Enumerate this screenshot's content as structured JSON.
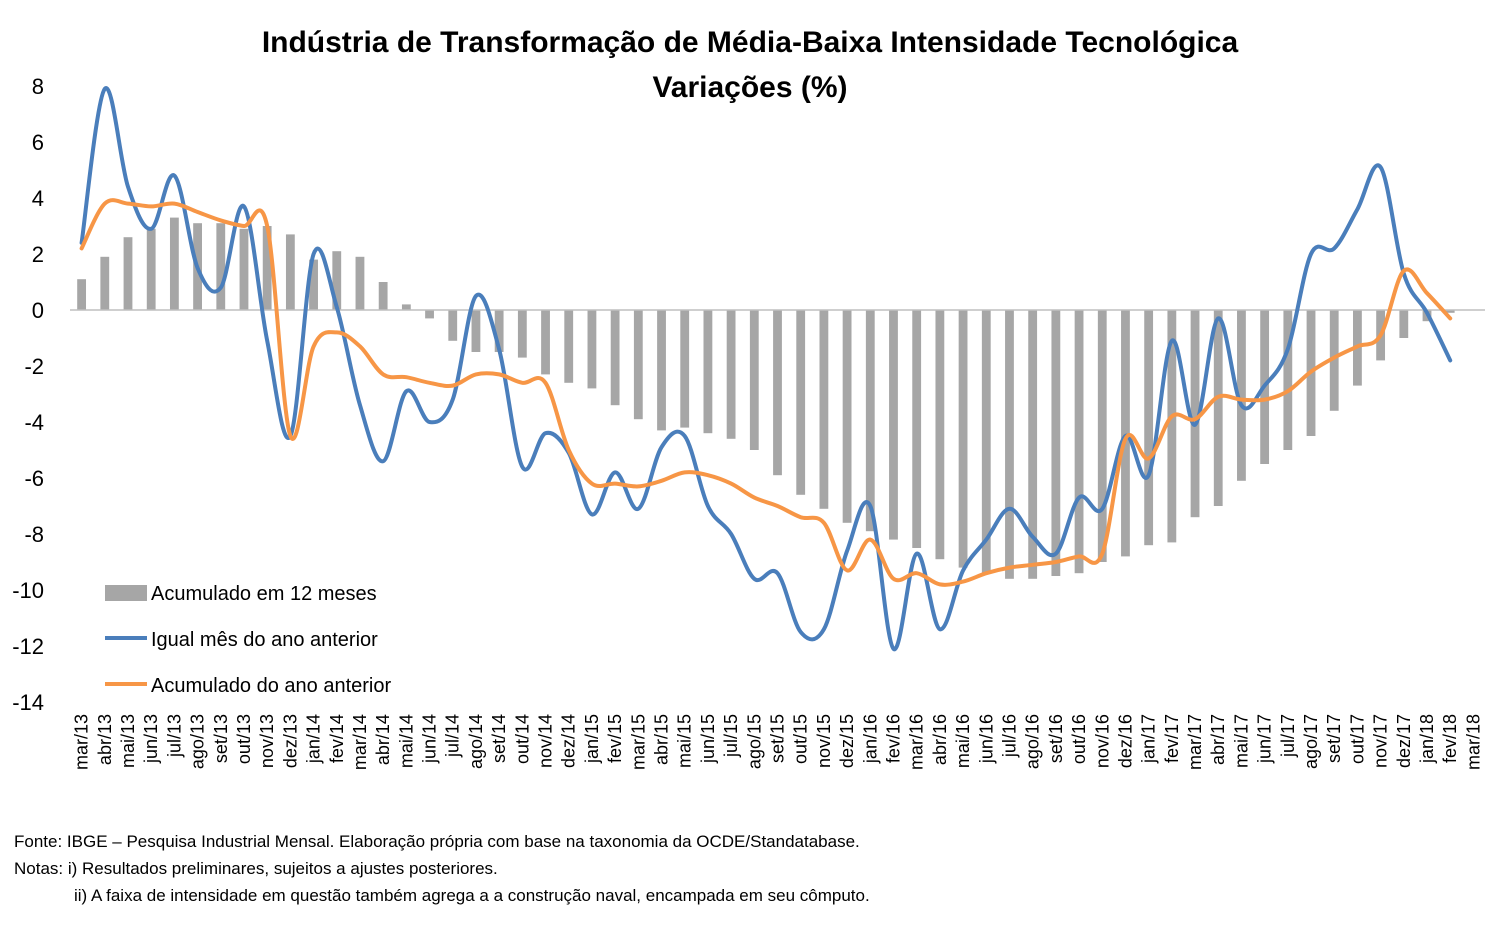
{
  "chart_data": {
    "type": "bar",
    "title": "Indústria de Transformação de Média-Baixa Intensidade Tecnológica",
    "subtitle": "Variações (%)",
    "ylim": [
      -14,
      8
    ],
    "yticks": [
      8,
      6,
      4,
      2,
      0,
      -2,
      -4,
      -6,
      -8,
      -10,
      -12,
      -14
    ],
    "grid": false,
    "legend_position": "bottom-left",
    "categories": [
      "mar/13",
      "abr/13",
      "mai/13",
      "jun/13",
      "jul/13",
      "ago/13",
      "set/13",
      "out/13",
      "nov/13",
      "dez/13",
      "jan/14",
      "fev/14",
      "mar/14",
      "abr/14",
      "mai/14",
      "jun/14",
      "jul/14",
      "ago/14",
      "set/14",
      "out/14",
      "nov/14",
      "dez/14",
      "jan/15",
      "fev/15",
      "mar/15",
      "abr/15",
      "mai/15",
      "jun/15",
      "jul/15",
      "ago/15",
      "set/15",
      "out/15",
      "nov/15",
      "dez/15",
      "jan/16",
      "fev/16",
      "mar/16",
      "abr/16",
      "mai/16",
      "jun/16",
      "jul/16",
      "ago/16",
      "set/16",
      "out/16",
      "nov/16",
      "dez/16",
      "jan/17",
      "fev/17",
      "mar/17",
      "abr/17",
      "mai/17",
      "jun/17",
      "jul/17",
      "ago/17",
      "set/17",
      "out/17",
      "nov/17",
      "dez/17",
      "jan/18",
      "fev/18",
      "mar/18"
    ],
    "series": [
      {
        "name": "Acumulado em 12 meses",
        "kind": "bar",
        "color": "#a6a6a6",
        "values": [
          1.1,
          1.9,
          2.6,
          2.9,
          3.3,
          3.1,
          3.1,
          2.9,
          3.0,
          2.7,
          1.8,
          2.1,
          1.9,
          1.0,
          0.2,
          -0.3,
          -1.1,
          -1.5,
          -1.5,
          -1.7,
          -2.3,
          -2.6,
          -2.8,
          -3.4,
          -3.9,
          -4.3,
          -4.2,
          -4.4,
          -4.6,
          -5.0,
          -5.9,
          -6.6,
          -7.1,
          -7.6,
          -7.9,
          -8.2,
          -8.5,
          -8.9,
          -9.2,
          -9.4,
          -9.6,
          -9.6,
          -9.5,
          -9.4,
          -9.0,
          -8.8,
          -8.4,
          -8.3,
          -7.4,
          -7.0,
          -6.1,
          -5.5,
          -5.0,
          -4.5,
          -3.6,
          -2.7,
          -1.8,
          -1.0,
          -0.4,
          -0.1,
          0.0
        ]
      },
      {
        "name": "Igual mês do ano anterior",
        "kind": "line",
        "color": "#4a7ebb",
        "values": [
          2.4,
          7.9,
          4.4,
          2.9,
          4.8,
          1.5,
          0.8,
          3.7,
          -1.1,
          -4.5,
          2.0,
          0.1,
          -3.4,
          -5.4,
          -2.9,
          -4.0,
          -3.2,
          0.5,
          -1.4,
          -5.6,
          -4.4,
          -5.1,
          -7.3,
          -5.8,
          -7.1,
          -4.9,
          -4.5,
          -7.0,
          -8.0,
          -9.6,
          -9.4,
          -11.5,
          -11.4,
          -8.6,
          -7.0,
          -12.1,
          -8.7,
          -11.4,
          -9.3,
          -8.2,
          -7.1,
          -8.1,
          -8.7,
          -6.7,
          -7.1,
          -4.5,
          -5.9,
          -1.1,
          -4.1,
          -0.3,
          -3.4,
          -2.7,
          -1.4,
          2.0,
          2.2,
          3.6,
          5.1,
          1.3,
          -0.1,
          -1.8,
          null
        ]
      },
      {
        "name": "Acumulado do ano anterior",
        "kind": "line",
        "color": "#f79646",
        "values": [
          2.2,
          3.8,
          3.8,
          3.7,
          3.8,
          3.5,
          3.2,
          3.0,
          3.0,
          -4.5,
          -1.3,
          -0.8,
          -1.3,
          -2.3,
          -2.4,
          -2.6,
          -2.7,
          -2.3,
          -2.3,
          -2.6,
          -2.6,
          -5.0,
          -6.2,
          -6.2,
          -6.3,
          -6.1,
          -5.8,
          -5.9,
          -6.2,
          -6.7,
          -7.0,
          -7.4,
          -7.6,
          -9.3,
          -8.2,
          -9.6,
          -9.4,
          -9.8,
          -9.7,
          -9.4,
          -9.2,
          -9.1,
          -9.0,
          -8.8,
          -8.7,
          -4.6,
          -5.3,
          -3.8,
          -3.9,
          -3.1,
          -3.2,
          -3.2,
          -2.9,
          -2.2,
          -1.7,
          -1.3,
          -0.9,
          1.4,
          0.6,
          -0.3,
          null
        ]
      }
    ]
  },
  "notes": {
    "fonte": "Fonte: IBGE – Pesquisa Industrial Mensal. Elaboração própria com base na taxonomia da OCDE/Standatabase.",
    "nota1": "Notas: i) Resultados preliminares, sujeitos a ajustes posteriores.",
    "nota2": "ii) A faixa de intensidade em questão também agrega a a construção naval, encampada em seu cômputo."
  }
}
